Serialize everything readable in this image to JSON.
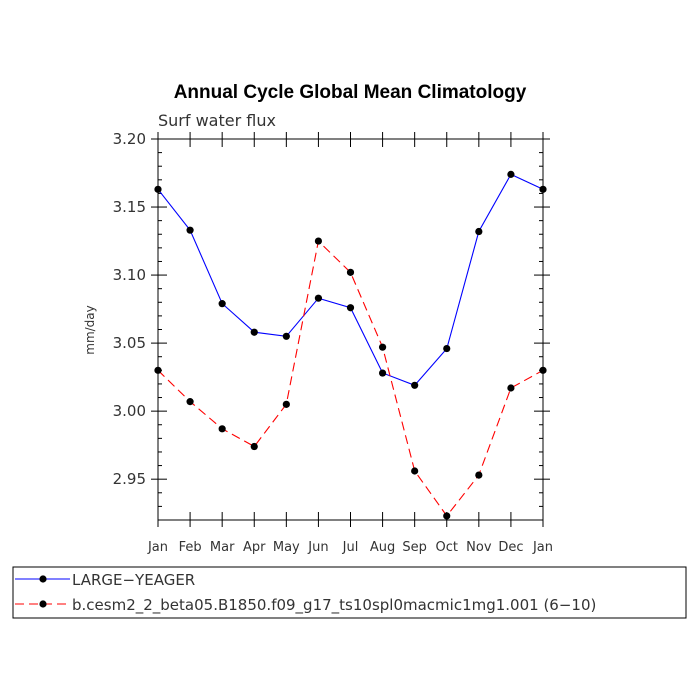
{
  "chart_data": {
    "type": "line",
    "title": "Annual Cycle Global Mean Climatology",
    "subtitle": "Surf water flux",
    "ylabel": "mm/day",
    "xlabel": "",
    "ylim": [
      2.92,
      3.2
    ],
    "yticks": [
      2.95,
      3.0,
      3.05,
      3.1,
      3.15,
      3.2
    ],
    "ytick_labels": [
      "2.95",
      "3.00",
      "3.05",
      "3.10",
      "3.15",
      "3.20"
    ],
    "categories": [
      "Jan",
      "Feb",
      "Mar",
      "Apr",
      "May",
      "Jun",
      "Jul",
      "Aug",
      "Sep",
      "Oct",
      "Nov",
      "Dec",
      "Jan"
    ],
    "grid": false,
    "legend_position": "bottom",
    "series": [
      {
        "name": "LARGE−YEAGER",
        "color": "#0000ff",
        "dash": "solid",
        "values": [
          3.163,
          3.133,
          3.079,
          3.058,
          3.055,
          3.083,
          3.076,
          3.028,
          3.019,
          3.046,
          3.132,
          3.174,
          3.163
        ]
      },
      {
        "name": "b.cesm2_2_beta05.B1850.f09_g17_ts10spl0macmic1mg1.001 (6−10)",
        "color": "#ff0000",
        "dash": "dashed",
        "values": [
          3.03,
          3.007,
          2.987,
          2.974,
          3.005,
          3.125,
          3.102,
          3.047,
          2.956,
          2.923,
          2.953,
          3.017,
          3.03
        ]
      }
    ]
  }
}
